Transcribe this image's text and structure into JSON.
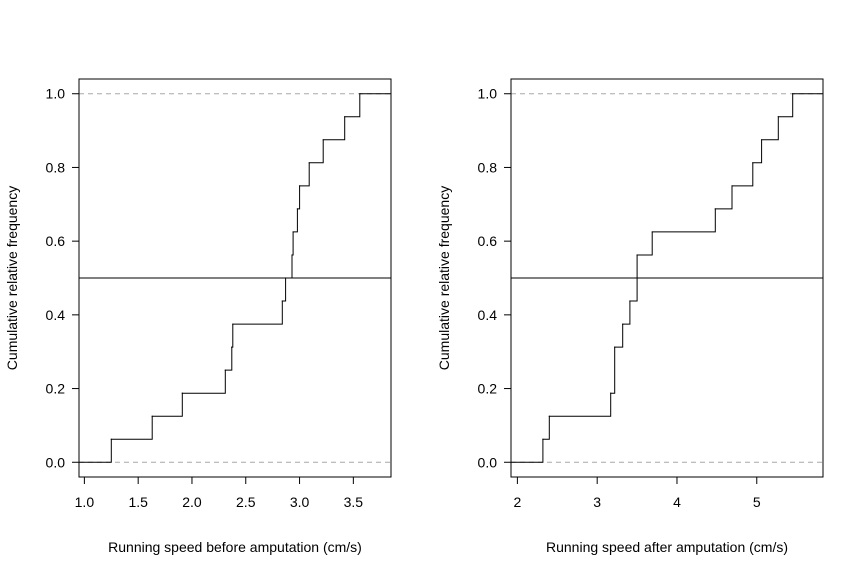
{
  "chart_data": [
    {
      "type": "step",
      "title": "",
      "xlabel": "Running speed before amputation (cm/s)",
      "ylabel": "Cumulative relative frequency",
      "xlim": [
        0.95,
        3.85
      ],
      "ylim": [
        -0.04,
        1.04
      ],
      "xticks": [
        1.0,
        1.5,
        2.0,
        2.5,
        3.0,
        3.5
      ],
      "xtick_labels": [
        "1.0",
        "1.5",
        "2.0",
        "2.5",
        "3.0",
        "3.5"
      ],
      "yticks": [
        0.0,
        0.2,
        0.4,
        0.6,
        0.8,
        1.0
      ],
      "ytick_labels": [
        "0.0",
        "0.2",
        "0.4",
        "0.6",
        "0.8",
        "1.0"
      ],
      "reference_lines": [
        0.0,
        1.0
      ],
      "median_line": 0.5,
      "steps": [
        {
          "x": 1.25,
          "y": 0.0625
        },
        {
          "x": 1.63,
          "y": 0.125
        },
        {
          "x": 1.91,
          "y": 0.1875
        },
        {
          "x": 2.31,
          "y": 0.25
        },
        {
          "x": 2.37,
          "y": 0.3125
        },
        {
          "x": 2.38,
          "y": 0.375
        },
        {
          "x": 2.84,
          "y": 0.4375
        },
        {
          "x": 2.87,
          "y": 0.5
        },
        {
          "x": 2.93,
          "y": 0.5625
        },
        {
          "x": 2.94,
          "y": 0.625
        },
        {
          "x": 2.98,
          "y": 0.6875
        },
        {
          "x": 3.0,
          "y": 0.75
        },
        {
          "x": 3.09,
          "y": 0.8125
        },
        {
          "x": 3.22,
          "y": 0.875
        },
        {
          "x": 3.42,
          "y": 0.9375
        },
        {
          "x": 3.56,
          "y": 1.0
        }
      ]
    },
    {
      "type": "step",
      "title": "",
      "xlabel": "Running speed after amputation (cm/s)",
      "ylabel": "Cumulative relative frequency",
      "xlim": [
        1.92,
        5.83
      ],
      "ylim": [
        -0.04,
        1.04
      ],
      "xticks": [
        2,
        3,
        4,
        5
      ],
      "xtick_labels": [
        "2",
        "3",
        "4",
        "5"
      ],
      "yticks": [
        0.0,
        0.2,
        0.4,
        0.6,
        0.8,
        1.0
      ],
      "ytick_labels": [
        "0.0",
        "0.2",
        "0.4",
        "0.6",
        "0.8",
        "1.0"
      ],
      "reference_lines": [
        0.0,
        1.0
      ],
      "median_line": 0.5,
      "steps": [
        {
          "x": 2.32,
          "y": 0.0625
        },
        {
          "x": 2.4,
          "y": 0.125
        },
        {
          "x": 3.17,
          "y": 0.1875
        },
        {
          "x": 3.22,
          "y": 0.3125
        },
        {
          "x": 3.32,
          "y": 0.375
        },
        {
          "x": 3.41,
          "y": 0.4375
        },
        {
          "x": 3.5,
          "y": 0.5625
        },
        {
          "x": 3.69,
          "y": 0.625
        },
        {
          "x": 4.48,
          "y": 0.6875
        },
        {
          "x": 4.69,
          "y": 0.75
        },
        {
          "x": 4.95,
          "y": 0.8125
        },
        {
          "x": 5.06,
          "y": 0.875
        },
        {
          "x": 5.27,
          "y": 0.9375
        },
        {
          "x": 5.45,
          "y": 1.0
        }
      ]
    }
  ]
}
